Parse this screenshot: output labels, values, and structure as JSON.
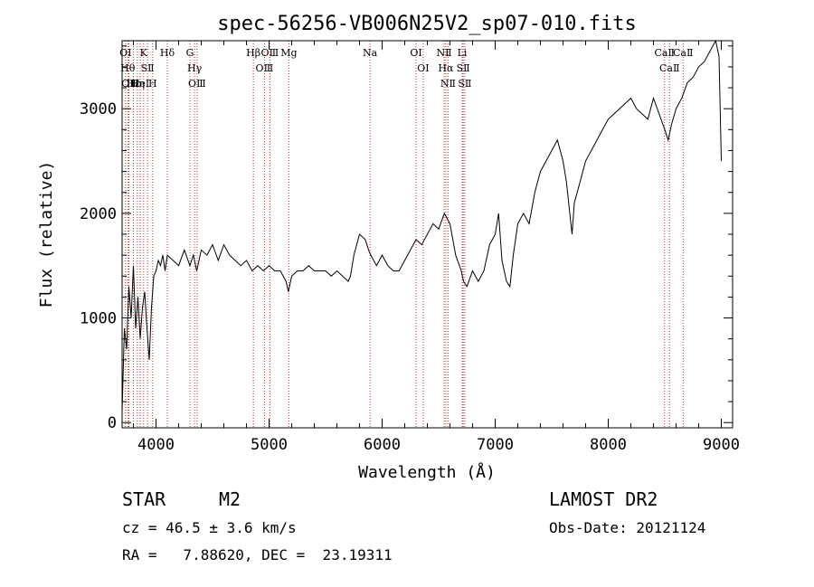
{
  "chart_data": {
    "type": "line",
    "title": "spec-56256-VB006N25V2_sp07-010.fits",
    "xlabel": "Wavelength (Å)",
    "ylabel": "Flux (relative)",
    "xlim": [
      3700,
      9100
    ],
    "ylim": [
      -50,
      3650
    ],
    "x_ticks": [
      4000,
      5000,
      6000,
      7000,
      8000,
      9000
    ],
    "y_ticks": [
      0,
      1000,
      2000,
      3000
    ],
    "grid": false,
    "series_color": "#000000",
    "line_color": "#c03030",
    "series": [
      {
        "x": [
          3700,
          3720,
          3740,
          3760,
          3780,
          3800,
          3820,
          3840,
          3860,
          3880,
          3900,
          3920,
          3940,
          3960,
          3980,
          4000,
          4020,
          4040,
          4060,
          4080,
          4100,
          4150,
          4200,
          4250,
          4300,
          4330,
          4360,
          4400,
          4450,
          4500,
          4550,
          4600,
          4650,
          4700,
          4750,
          4800,
          4850,
          4900,
          4950,
          5000,
          5050,
          5100,
          5150,
          5170,
          5200,
          5250,
          5300,
          5350,
          5400,
          5450,
          5500,
          5550,
          5600,
          5650,
          5700,
          5720,
          5750,
          5800,
          5850,
          5880,
          5900,
          5950,
          6000,
          6050,
          6100,
          6150,
          6200,
          6250,
          6300,
          6350,
          6400,
          6450,
          6500,
          6550,
          6600,
          6650,
          6700,
          6720,
          6750,
          6800,
          6850,
          6900,
          6950,
          7000,
          7030,
          7060,
          7100,
          7130,
          7160,
          7200,
          7250,
          7300,
          7350,
          7400,
          7450,
          7500,
          7550,
          7600,
          7630,
          7660,
          7680,
          7700,
          7750,
          7800,
          7850,
          7900,
          7950,
          8000,
          8050,
          8100,
          8150,
          8200,
          8250,
          8300,
          8350,
          8400,
          8450,
          8500,
          8530,
          8560,
          8600,
          8650,
          8700,
          8750,
          8800,
          8850,
          8900,
          8950,
          8980,
          9000
        ],
        "y": [
          100,
          900,
          700,
          1300,
          1000,
          1500,
          900,
          1200,
          800,
          1100,
          1250,
          900,
          600,
          1100,
          1400,
          1450,
          1550,
          1500,
          1600,
          1450,
          1600,
          1550,
          1500,
          1650,
          1500,
          1600,
          1450,
          1650,
          1600,
          1700,
          1550,
          1700,
          1600,
          1550,
          1500,
          1550,
          1450,
          1500,
          1450,
          1500,
          1450,
          1450,
          1350,
          1250,
          1400,
          1450,
          1450,
          1500,
          1450,
          1450,
          1450,
          1400,
          1450,
          1400,
          1350,
          1400,
          1600,
          1800,
          1750,
          1650,
          1600,
          1500,
          1600,
          1500,
          1450,
          1450,
          1550,
          1650,
          1750,
          1700,
          1800,
          1900,
          1850,
          2000,
          1900,
          1600,
          1450,
          1350,
          1300,
          1450,
          1350,
          1450,
          1700,
          1800,
          2000,
          1550,
          1350,
          1300,
          1600,
          1900,
          2000,
          1900,
          2200,
          2400,
          2500,
          2600,
          2700,
          2500,
          2300,
          2000,
          1800,
          2100,
          2300,
          2500,
          2600,
          2700,
          2800,
          2900,
          2950,
          3000,
          3050,
          3100,
          3000,
          2950,
          2900,
          3100,
          2950,
          2800,
          2700,
          2850,
          3000,
          3100,
          3250,
          3300,
          3400,
          3450,
          3550,
          3650,
          3500,
          2500
        ]
      }
    ],
    "line_labels": [
      {
        "x": 3730,
        "text": "OⅠ"
      },
      {
        "x": 3750,
        "text": "Hθ"
      },
      {
        "x": 3760,
        "text": "OⅡ"
      },
      {
        "x": 3800,
        "text": "Hε"
      },
      {
        "x": 3835,
        "text": "Hη"
      },
      {
        "x": 3860,
        "text": "HeⅠ"
      },
      {
        "x": 3890,
        "text": "K"
      },
      {
        "x": 3925,
        "text": "SⅡ"
      },
      {
        "x": 3970,
        "text": "H"
      },
      {
        "x": 4100,
        "text": "Hδ"
      },
      {
        "x": 4300,
        "text": "G"
      },
      {
        "x": 4341,
        "text": "Hγ"
      },
      {
        "x": 4363,
        "text": "OⅢ"
      },
      {
        "x": 4861,
        "text": "Hβ"
      },
      {
        "x": 4959,
        "text": "OⅢ"
      },
      {
        "x": 5007,
        "text": "OⅢ"
      },
      {
        "x": 5175,
        "text": "Mg"
      },
      {
        "x": 5893,
        "text": "Na"
      },
      {
        "x": 6300,
        "text": "OⅠ"
      },
      {
        "x": 6363,
        "text": "OⅠ"
      },
      {
        "x": 6548,
        "text": "NⅡ"
      },
      {
        "x": 6563,
        "text": "Hα"
      },
      {
        "x": 6583,
        "text": "NⅡ"
      },
      {
        "x": 6708,
        "text": "Li"
      },
      {
        "x": 6717,
        "text": "SⅡ"
      },
      {
        "x": 6731,
        "text": "SⅡ"
      },
      {
        "x": 8498,
        "text": "CaⅡ"
      },
      {
        "x": 8542,
        "text": "CaⅡ"
      },
      {
        "x": 8662,
        "text": "CaⅡ"
      }
    ]
  },
  "info": {
    "class": "STAR",
    "subclass": "M2",
    "cz": "cz = 46.5 ± 3.6 km/s",
    "radec": "RA =   7.88620, DEC =  23.19311",
    "survey": "LAMOST DR2",
    "obsdate": "Obs-Date: 20121124"
  }
}
